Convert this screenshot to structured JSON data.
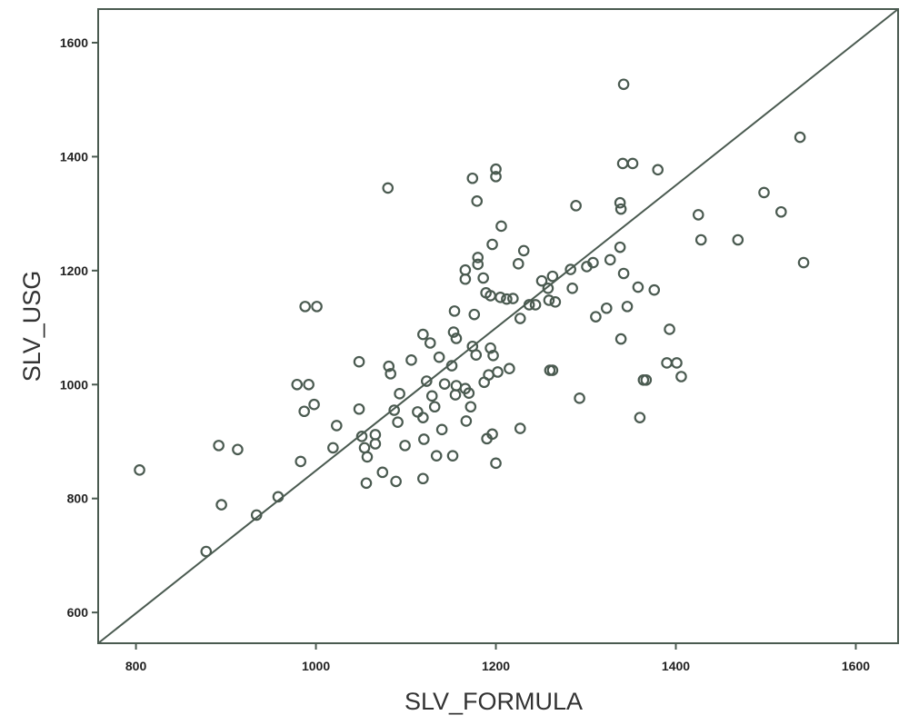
{
  "chart_data": {
    "type": "scatter",
    "title": "",
    "xlabel": "SLV_FORMULA",
    "ylabel": "SLV_USG",
    "xlim": [
      758,
      1647
    ],
    "ylim": [
      546,
      1659
    ],
    "xticks": [
      800,
      1000,
      1200,
      1400,
      1600
    ],
    "yticks": [
      600,
      800,
      1000,
      1200,
      1400,
      1600
    ],
    "xtick_labels": [
      "800",
      "1000",
      "1200",
      "1400",
      "1600"
    ],
    "ytick_labels": [
      "600",
      "800",
      "1000",
      "1200",
      "1400",
      "1600"
    ],
    "grid": false,
    "reference_line": {
      "x": [
        758,
        1647
      ],
      "y": [
        546,
        1659
      ]
    },
    "marker_color": "#4a5a50",
    "line_color": "#4a5a50",
    "points": [
      [
        804,
        850
      ],
      [
        878,
        707
      ],
      [
        895,
        789
      ],
      [
        892,
        893
      ],
      [
        913,
        886
      ],
      [
        934,
        771
      ],
      [
        958,
        803
      ],
      [
        983,
        865
      ],
      [
        979,
        1000
      ],
      [
        992,
        1000
      ],
      [
        987,
        953
      ],
      [
        998,
        965
      ],
      [
        988,
        1137
      ],
      [
        1001,
        1137
      ],
      [
        1019,
        889
      ],
      [
        1023,
        928
      ],
      [
        1048,
        1040
      ],
      [
        1048,
        957
      ],
      [
        1051,
        909
      ],
      [
        1054,
        889
      ],
      [
        1057,
        873
      ],
      [
        1056,
        827
      ],
      [
        1066,
        896
      ],
      [
        1066,
        912
      ],
      [
        1074,
        846
      ],
      [
        1089,
        830
      ],
      [
        1091,
        934
      ],
      [
        1087,
        955
      ],
      [
        1093,
        984
      ],
      [
        1081,
        1032
      ],
      [
        1083,
        1019
      ],
      [
        1080,
        1345
      ],
      [
        1099,
        893
      ],
      [
        1106,
        1043
      ],
      [
        1119,
        835
      ],
      [
        1120,
        904
      ],
      [
        1113,
        952
      ],
      [
        1119,
        942
      ],
      [
        1123,
        1006
      ],
      [
        1119,
        1088
      ],
      [
        1127,
        1073
      ],
      [
        1129,
        980
      ],
      [
        1132,
        961
      ],
      [
        1134,
        875
      ],
      [
        1137,
        1048
      ],
      [
        1140,
        921
      ],
      [
        1143,
        1001
      ],
      [
        1151,
        1033
      ],
      [
        1152,
        875
      ],
      [
        1153,
        1092
      ],
      [
        1154,
        1129
      ],
      [
        1156,
        1081
      ],
      [
        1155,
        982
      ],
      [
        1156,
        998
      ],
      [
        1167,
        936
      ],
      [
        1166,
        993
      ],
      [
        1170,
        985
      ],
      [
        1172,
        961
      ],
      [
        1174,
        1067
      ],
      [
        1178,
        1052
      ],
      [
        1176,
        1123
      ],
      [
        1166,
        1201
      ],
      [
        1166,
        1185
      ],
      [
        1174,
        1362
      ],
      [
        1179,
        1322
      ],
      [
        1180,
        1223
      ],
      [
        1180,
        1211
      ],
      [
        1186,
        1187
      ],
      [
        1189,
        1161
      ],
      [
        1194,
        1156
      ],
      [
        1187,
        1004
      ],
      [
        1192,
        1017
      ],
      [
        1190,
        905
      ],
      [
        1196,
        913
      ],
      [
        1194,
        1064
      ],
      [
        1197,
        1051
      ],
      [
        1200,
        862
      ],
      [
        1202,
        1022
      ],
      [
        1196,
        1246
      ],
      [
        1200,
        1378
      ],
      [
        1200,
        1365
      ],
      [
        1206,
        1278
      ],
      [
        1205,
        1153
      ],
      [
        1212,
        1150
      ],
      [
        1215,
        1028
      ],
      [
        1219,
        1151
      ],
      [
        1225,
        1212
      ],
      [
        1231,
        1235
      ],
      [
        1227,
        1116
      ],
      [
        1227,
        923
      ],
      [
        1237,
        1140
      ],
      [
        1244,
        1140
      ],
      [
        1251,
        1182
      ],
      [
        1260,
        1025
      ],
      [
        1258,
        1169
      ],
      [
        1259,
        1148
      ],
      [
        1263,
        1190
      ],
      [
        1266,
        1145
      ],
      [
        1263,
        1025
      ],
      [
        1283,
        1202
      ],
      [
        1285,
        1169
      ],
      [
        1289,
        1314
      ],
      [
        1293,
        976
      ],
      [
        1301,
        1207
      ],
      [
        1308,
        1214
      ],
      [
        1311,
        1119
      ],
      [
        1323,
        1134
      ],
      [
        1327,
        1219
      ],
      [
        1338,
        1319
      ],
      [
        1339,
        1308
      ],
      [
        1341,
        1388
      ],
      [
        1352,
        1388
      ],
      [
        1342,
        1527
      ],
      [
        1338,
        1241
      ],
      [
        1342,
        1195
      ],
      [
        1339,
        1080
      ],
      [
        1346,
        1137
      ],
      [
        1358,
        1171
      ],
      [
        1360,
        942
      ],
      [
        1364,
        1008
      ],
      [
        1367,
        1008
      ],
      [
        1376,
        1166
      ],
      [
        1380,
        1377
      ],
      [
        1393,
        1097
      ],
      [
        1390,
        1038
      ],
      [
        1401,
        1038
      ],
      [
        1406,
        1014
      ],
      [
        1425,
        1298
      ],
      [
        1428,
        1254
      ],
      [
        1469,
        1254
      ],
      [
        1498,
        1337
      ],
      [
        1517,
        1303
      ],
      [
        1538,
        1434
      ],
      [
        1542,
        1214
      ]
    ]
  }
}
